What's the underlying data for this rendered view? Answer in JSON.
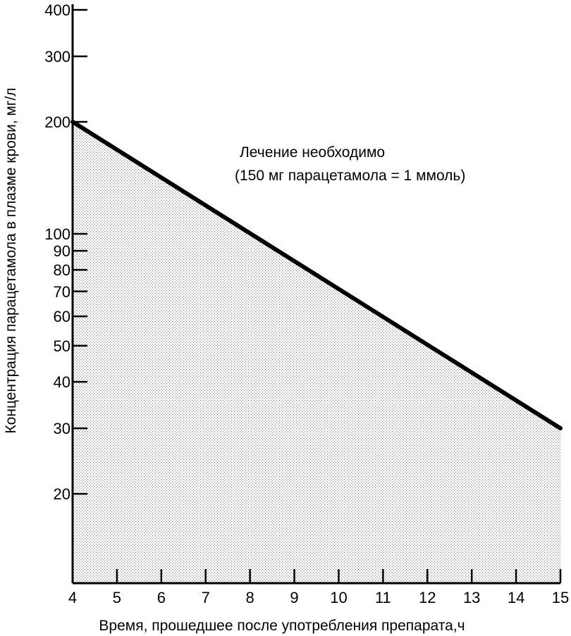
{
  "chart_data": {
    "type": "line",
    "x_scale": "linear",
    "y_scale": "log",
    "xlim": [
      4,
      15
    ],
    "ylim": [
      11.5,
      400
    ],
    "xlabel": "Время, прошедшее после употребления препарата,ч",
    "ylabel": "Концентрация парацетамола в плазме крови, мг/л",
    "x_ticks": [
      4,
      5,
      6,
      7,
      8,
      9,
      10,
      11,
      12,
      13,
      14,
      15
    ],
    "y_ticks": [
      20,
      30,
      40,
      50,
      60,
      70,
      80,
      90,
      100,
      200,
      300,
      400
    ],
    "grid": false,
    "series": [
      {
        "x": [
          4,
          15
        ],
        "y": [
          200,
          30
        ],
        "fill": "below",
        "fill_pattern": "stipple"
      }
    ],
    "annotations": [
      "Лечение необходимо",
      "(150 мг парацетамола = 1 ммоль)"
    ],
    "colors": {
      "line": "#000000",
      "fill": "#8c8c8c"
    }
  }
}
